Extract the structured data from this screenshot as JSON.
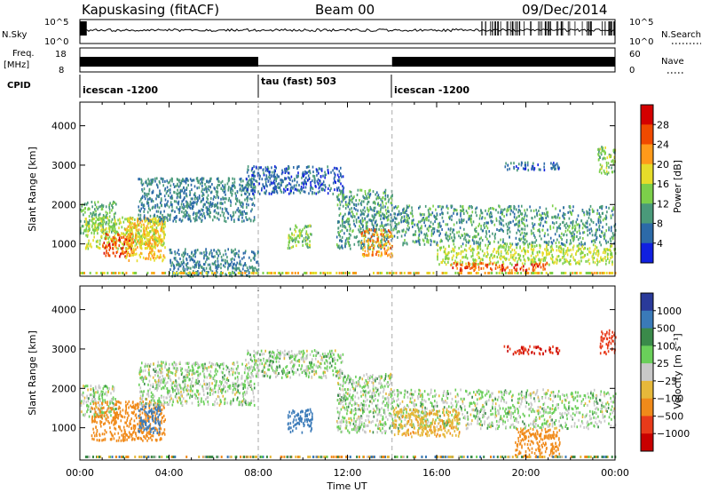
{
  "header": {
    "station": "Kapuskasing (fitACF)",
    "beam": "Beam 00",
    "date": "09/Dec/2014"
  },
  "strip_panels": {
    "nsky": {
      "left_label": "N.Sky",
      "left_ticks": [
        "10^5",
        "10^0"
      ],
      "right_label": "N.Search",
      "right_ticks": [
        "10^5",
        "10^0"
      ]
    },
    "freq": {
      "left_label_line1": "Freq.",
      "left_label_line2": "[MHz]",
      "left_ticks": [
        "18",
        "8"
      ],
      "right_label": "Nave",
      "right_ticks": [
        "60",
        "0"
      ]
    },
    "cpid": {
      "label": "CPID",
      "segments": [
        {
          "name": "icescan -1200",
          "start_hour": 0,
          "end_hour": 8
        },
        {
          "name": "tau (fast) 503",
          "start_hour": 8,
          "end_hour": 14
        },
        {
          "name": "icescan -1200",
          "start_hour": 14,
          "end_hour": 24
        }
      ]
    }
  },
  "power_panel": {
    "ylabel": "Slant Range [km]",
    "colorbar_label": "Power [dB]",
    "colorbar_ticks": [
      "28",
      "24",
      "20",
      "16",
      "12",
      "8",
      "4"
    ],
    "colorbar_colors": [
      "#d40000",
      "#f04a00",
      "#ff9a1a",
      "#e6dc2a",
      "#7ccf4a",
      "#4a9a7a",
      "#2c6aa8",
      "#1020e0"
    ]
  },
  "velocity_panel": {
    "ylabel": "Slant Range [km]",
    "colorbar_label": "Velocity [m s⁻¹]",
    "colorbar_ticks": [
      "1000",
      "500",
      "100",
      "25",
      "−25",
      "−100",
      "−500",
      "−1000"
    ],
    "colorbar_colors": [
      "#2a3a9a",
      "#3a7ab8",
      "#3a8a4a",
      "#6acf5a",
      "#c8c8c8",
      "#e6b83a",
      "#f08a1a",
      "#e83a1a",
      "#c80000"
    ]
  },
  "time_axis": {
    "xlabel": "Time UT",
    "tick_labels": [
      "00:00",
      "04:00",
      "08:00",
      "12:00",
      "16:00",
      "20:00",
      "00:00"
    ]
  },
  "chart_data": {
    "type": "heatmap",
    "title": "Kapuskasing (fitACF)   Beam 00   09/Dec/2014",
    "xlabel": "Time UT",
    "ylabel": "Slant Range [km]",
    "x_ticks": [
      "00:00",
      "04:00",
      "08:00",
      "12:00",
      "16:00",
      "20:00",
      "00:00"
    ],
    "y_ticks": [
      1000,
      2000,
      3000,
      4000
    ],
    "xlim_hours": [
      0,
      24
    ],
    "ylim_km": [
      180,
      4600
    ],
    "mode_change_hours": [
      8,
      14
    ],
    "panels": [
      {
        "name": "Power",
        "unit": "dB",
        "colorbar_ticks": [
          4,
          8,
          12,
          16,
          20,
          24,
          28
        ],
        "regions": [
          {
            "t0": 0.0,
            "t1": 1.6,
            "r0": 1300,
            "r1": 2100,
            "level": 12
          },
          {
            "t0": 0.2,
            "t1": 3.8,
            "r0": 900,
            "r1": 1700,
            "level": 16
          },
          {
            "t0": 1.0,
            "t1": 2.4,
            "r0": 700,
            "r1": 1300,
            "level": 26
          },
          {
            "t0": 2.0,
            "t1": 3.8,
            "r0": 600,
            "r1": 1700,
            "level": 20
          },
          {
            "t0": 2.6,
            "t1": 7.8,
            "r0": 1600,
            "r1": 2700,
            "level": 8
          },
          {
            "t0": 4.0,
            "t1": 8.0,
            "r0": 200,
            "r1": 900,
            "level": 8
          },
          {
            "t0": 7.4,
            "t1": 11.8,
            "r0": 2300,
            "r1": 3000,
            "level": 6
          },
          {
            "t0": 9.3,
            "t1": 10.4,
            "r0": 900,
            "r1": 1500,
            "level": 14
          },
          {
            "t0": 11.5,
            "t1": 14.0,
            "r0": 900,
            "r1": 2400,
            "level": 10
          },
          {
            "t0": 12.6,
            "t1": 14.0,
            "r0": 700,
            "r1": 1400,
            "level": 22
          },
          {
            "t0": 14.0,
            "t1": 24.0,
            "r0": 1000,
            "r1": 2000,
            "level": 10
          },
          {
            "t0": 16.0,
            "t1": 24.0,
            "r0": 500,
            "r1": 1000,
            "level": 16
          },
          {
            "t0": 16.5,
            "t1": 21.0,
            "r0": 350,
            "r1": 550,
            "level": 26
          },
          {
            "t0": 19.0,
            "t1": 21.5,
            "r0": 2900,
            "r1": 3100,
            "level": 6
          },
          {
            "t0": 23.2,
            "t1": 24.0,
            "r0": 2800,
            "r1": 3500,
            "level": 14
          }
        ]
      },
      {
        "name": "Velocity",
        "unit": "m s-1",
        "colorbar_ticks": [
          -1000,
          -500,
          -100,
          -25,
          25,
          100,
          500,
          1000
        ],
        "regions": [
          {
            "t0": 0.0,
            "t1": 1.6,
            "r0": 1300,
            "r1": 2100,
            "level": 0
          },
          {
            "t0": 0.5,
            "t1": 3.8,
            "r0": 700,
            "r1": 1700,
            "level": -300
          },
          {
            "t0": 2.6,
            "t1": 3.6,
            "r0": 900,
            "r1": 1600,
            "level": 300
          },
          {
            "t0": 2.6,
            "t1": 7.8,
            "r0": 1600,
            "r1": 2700,
            "level": 0
          },
          {
            "t0": 7.4,
            "t1": 11.8,
            "r0": 2300,
            "r1": 3000,
            "level": 0
          },
          {
            "t0": 9.3,
            "t1": 10.4,
            "r0": 900,
            "r1": 1500,
            "level": 200
          },
          {
            "t0": 11.5,
            "t1": 14.0,
            "r0": 900,
            "r1": 2400,
            "level": 0
          },
          {
            "t0": 14.0,
            "t1": 24.0,
            "r0": 1000,
            "r1": 2000,
            "level": 0
          },
          {
            "t0": 14.0,
            "t1": 17.0,
            "r0": 800,
            "r1": 1500,
            "level": -80
          },
          {
            "t0": 19.5,
            "t1": 21.5,
            "r0": 300,
            "r1": 1000,
            "level": -150
          },
          {
            "t0": 19.0,
            "t1": 21.5,
            "r0": 2900,
            "r1": 3100,
            "level": -900
          },
          {
            "t0": 23.3,
            "t1": 24.0,
            "r0": 2900,
            "r1": 3500,
            "level": -700
          }
        ]
      }
    ]
  }
}
